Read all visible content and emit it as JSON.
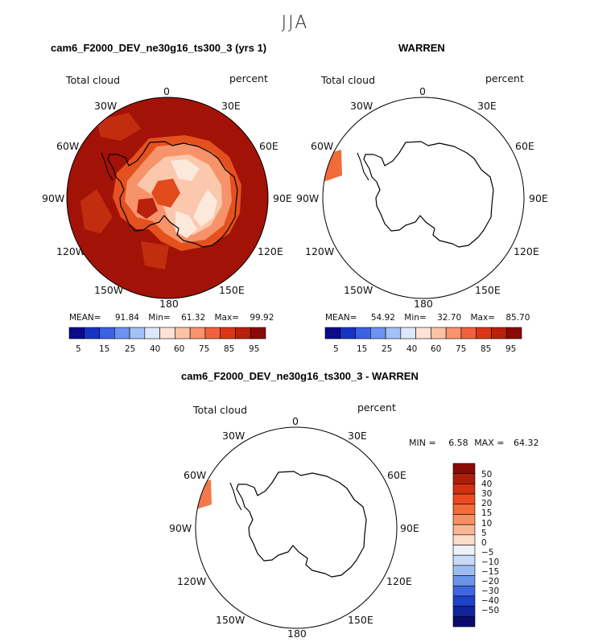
{
  "season_title": "JJA",
  "panels": [
    {
      "title": "cam6_F2000_DEV_ne30g16_ts300_3 (yrs 1)",
      "variable": "Total cloud",
      "units": "percent",
      "lon_labels": [
        "0",
        "30E",
        "60E",
        "90E",
        "120E",
        "150E",
        "180",
        "150W",
        "120W",
        "90W",
        "60W",
        "30W"
      ],
      "stats": {
        "mean_label": "MEAN=",
        "mean": "91.84",
        "min_label": "Min=",
        "min": "61.32",
        "max_label": "Max=",
        "max": "99.92"
      },
      "colorbar_ticks": [
        "5",
        "15",
        "25",
        "40",
        "60",
        "75",
        "85",
        "95"
      ]
    },
    {
      "title": "WARREN",
      "variable": "Total cloud",
      "units": "percent",
      "lon_labels": [
        "0",
        "30E",
        "60E",
        "90E",
        "120E",
        "150E",
        "180",
        "150W",
        "120W",
        "90W",
        "60W",
        "30W"
      ],
      "stats": {
        "mean_label": "MEAN=",
        "mean": "54.92",
        "min_label": "Min=",
        "min": "32.70",
        "max_label": "Max=",
        "max": "85.70"
      },
      "colorbar_ticks": [
        "5",
        "15",
        "25",
        "40",
        "60",
        "75",
        "85",
        "95"
      ]
    },
    {
      "title": "cam6_F2000_DEV_ne30g16_ts300_3 - WARREN",
      "variable": "Total cloud",
      "units": "percent",
      "lon_labels": [
        "0",
        "30E",
        "60E",
        "90E",
        "120E",
        "150E",
        "180",
        "150W",
        "120W",
        "90W",
        "60W",
        "30W"
      ],
      "stats": {
        "min_label": "MIN =",
        "min": "6.58",
        "max_label": "MAX =",
        "max": "64.32"
      },
      "colorbar_ticks": [
        "50",
        "40",
        "30",
        "20",
        "15",
        "10",
        "5",
        "0",
        "−5",
        "−10",
        "−15",
        "−20",
        "−30",
        "−40",
        "−50"
      ]
    }
  ],
  "colors": {
    "seq": [
      "#0b0b88",
      "#1733c4",
      "#3a62e2",
      "#6c93ee",
      "#a3c1f5",
      "#dde9fb",
      "#fde3d4",
      "#fbc3a6",
      "#f8946f",
      "#f2613d",
      "#de3517",
      "#b8210c",
      "#8b0a06"
    ],
    "diff": [
      "#8b0a06",
      "#ae1e0c",
      "#d0310f",
      "#ef4a1f",
      "#f46b3a",
      "#f79163",
      "#fab595",
      "#fcdcc8",
      "#eef1f8",
      "#c8daf7",
      "#9dbdf2",
      "#6b95eb",
      "#3e66df",
      "#1f40c8",
      "#10249e",
      "#0b0b6c"
    ],
    "cloud_high": "#a31206",
    "land_outline": "#000000"
  }
}
